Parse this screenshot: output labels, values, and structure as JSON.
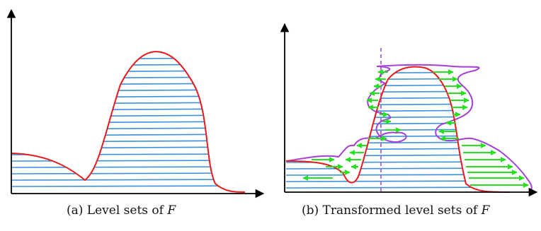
{
  "captions": {
    "a": {
      "text": "(a) Level sets of ",
      "math": "F"
    },
    "b": {
      "text": "(b) Transformed level sets of ",
      "math": "F"
    }
  },
  "colors": {
    "axis": "#000000",
    "function_curve": "#e8191b",
    "level_set_line": "#3d8fe0",
    "transformed_boundary": "#a43fd6",
    "displacement_arrow": "#22e11d",
    "reference_line": "#b05fe0"
  }
}
